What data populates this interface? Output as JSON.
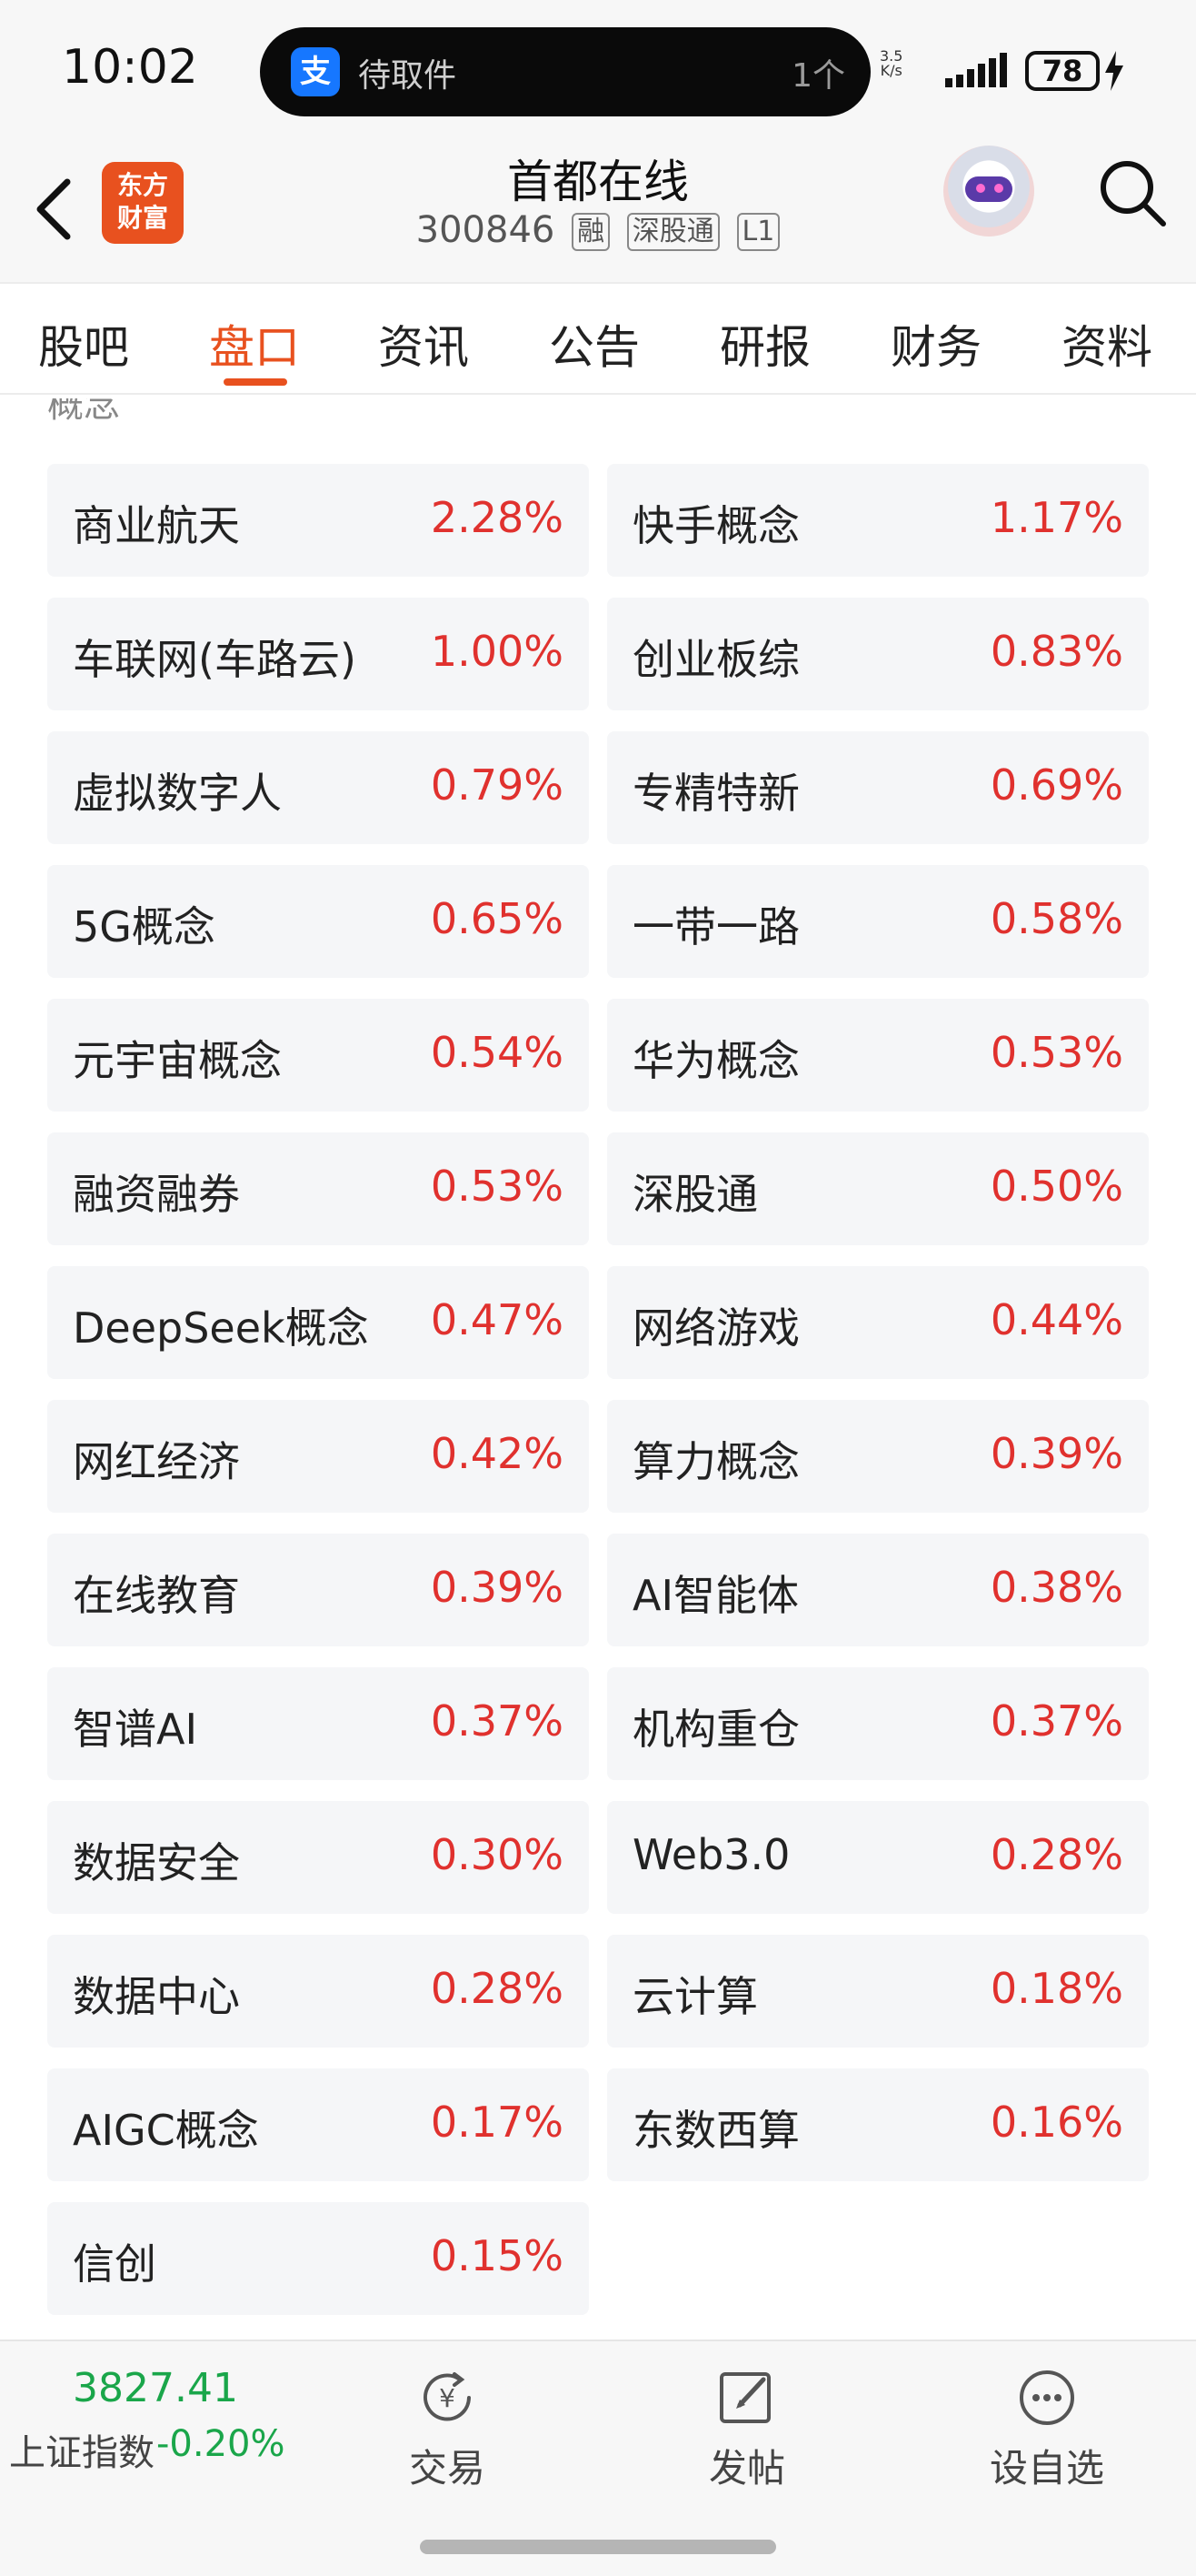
{
  "status_bar": {
    "time": "10:02",
    "notification_app_icon": "支",
    "notification_text": "待取件",
    "notification_count": "1个",
    "net_speed": "3.5\nK/s",
    "battery": "78"
  },
  "header": {
    "logo_text": "东方\n财富",
    "stock_name": "首都在线",
    "stock_code": "300846",
    "badges": [
      "融",
      "深股通",
      "L1"
    ]
  },
  "tabs": [
    {
      "label": "股吧",
      "active": false
    },
    {
      "label": "盘口",
      "active": true
    },
    {
      "label": "资讯",
      "active": false
    },
    {
      "label": "公告",
      "active": false
    },
    {
      "label": "研报",
      "active": false
    },
    {
      "label": "财务",
      "active": false
    },
    {
      "label": "资料",
      "active": false
    }
  ],
  "section_title": "概念",
  "concepts": [
    {
      "name": "商业航天",
      "change": "2.28%"
    },
    {
      "name": "快手概念",
      "change": "1.17%"
    },
    {
      "name": "车联网(车路云)",
      "change": "1.00%"
    },
    {
      "name": "创业板综",
      "change": "0.83%"
    },
    {
      "name": "虚拟数字人",
      "change": "0.79%"
    },
    {
      "name": "专精特新",
      "change": "0.69%"
    },
    {
      "name": "5G概念",
      "change": "0.65%"
    },
    {
      "name": "一带一路",
      "change": "0.58%"
    },
    {
      "name": "元宇宙概念",
      "change": "0.54%"
    },
    {
      "name": "华为概念",
      "change": "0.53%"
    },
    {
      "name": "融资融券",
      "change": "0.53%"
    },
    {
      "name": "深股通",
      "change": "0.50%"
    },
    {
      "name": "DeepSeek概念",
      "change": "0.47%"
    },
    {
      "name": "网络游戏",
      "change": "0.44%"
    },
    {
      "name": "网红经济",
      "change": "0.42%"
    },
    {
      "name": "算力概念",
      "change": "0.39%"
    },
    {
      "name": "在线教育",
      "change": "0.39%"
    },
    {
      "name": "AI智能体",
      "change": "0.38%"
    },
    {
      "name": "智谱AI",
      "change": "0.37%"
    },
    {
      "name": "机构重仓",
      "change": "0.37%"
    },
    {
      "name": "数据安全",
      "change": "0.30%"
    },
    {
      "name": "Web3.0",
      "change": "0.28%"
    },
    {
      "name": "数据中心",
      "change": "0.28%"
    },
    {
      "name": "云计算",
      "change": "0.18%"
    },
    {
      "name": "AIGC概念",
      "change": "0.17%"
    },
    {
      "name": "东数西算",
      "change": "0.16%"
    },
    {
      "name": "信创",
      "change": "0.15%"
    }
  ],
  "bottom_bar": {
    "index_value": "3827.41",
    "index_name": "上证指数",
    "index_change": "-0.20%",
    "trade_label": "交易",
    "post_label": "发帖",
    "watchlist_label": "设自选"
  },
  "colors": {
    "accent": "#e8511f",
    "up": "#e0312e",
    "down": "#1aa64a"
  }
}
